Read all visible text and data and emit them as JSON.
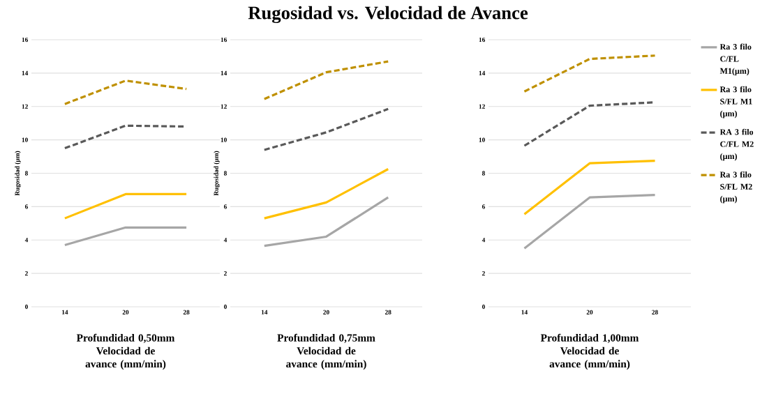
{
  "chart_data": [
    {
      "type": "line",
      "xlabel": "Profundidad 0,50mm Velocidad de avance (mm/min)",
      "ylabel": "Rugosidad (µm)",
      "categories": [
        "14",
        "20",
        "28"
      ],
      "ylim": [
        0,
        16
      ],
      "yticks": [
        0,
        2,
        4,
        6,
        8,
        10,
        12,
        14,
        16
      ],
      "grid": "y",
      "legend": false,
      "series": [
        {
          "color": "#a6a6a6",
          "line_style": "solid",
          "values": [
            3.7,
            4.75,
            4.75
          ]
        },
        {
          "color": "#ffc000",
          "line_style": "solid",
          "values": [
            5.3,
            6.75,
            6.75
          ]
        },
        {
          "color": "#595959",
          "line_style": "dashed",
          "values": [
            9.5,
            10.85,
            10.8
          ]
        },
        {
          "color": "#bf9000",
          "line_style": "dashed",
          "values": [
            12.15,
            13.55,
            13.05
          ]
        }
      ]
    },
    {
      "type": "line",
      "title": "Rugosidad vs. Velocidad de Avance",
      "xlabel": "Profundidad 0,75mm Velocidad de avance (mm/min)",
      "ylabel": "Rugosidad (µm)",
      "categories": [
        "14",
        "20",
        "28"
      ],
      "ylim": [
        0,
        16
      ],
      "yticks": [
        0,
        2,
        4,
        6,
        8,
        10,
        12,
        14,
        16
      ],
      "grid": "y",
      "legend": false,
      "series": [
        {
          "color": "#a6a6a6",
          "line_style": "solid",
          "values": [
            3.65,
            4.2,
            6.55
          ]
        },
        {
          "color": "#ffc000",
          "line_style": "solid",
          "values": [
            5.3,
            6.25,
            8.25
          ]
        },
        {
          "color": "#595959",
          "line_style": "dashed",
          "values": [
            9.4,
            10.45,
            11.85
          ]
        },
        {
          "color": "#bf9000",
          "line_style": "dashed",
          "values": [
            12.45,
            14.05,
            14.7
          ]
        }
      ]
    },
    {
      "type": "line",
      "xlabel": "Profundidad 1,00mm Velocidad de avance (mm/min)",
      "categories": [
        "14",
        "20",
        "28"
      ],
      "ylim": [
        0,
        16
      ],
      "yticks": [
        0,
        2,
        4,
        6,
        8,
        10,
        12,
        14,
        16
      ],
      "grid": "y",
      "legend": "right",
      "series": [
        {
          "name": "Ra 3 filo C/FL M1(µm)",
          "color": "#a6a6a6",
          "line_style": "solid",
          "values": [
            3.5,
            6.55,
            6.7
          ]
        },
        {
          "name": "Ra 3 filo S/FL M1 (µm)",
          "color": "#ffc000",
          "line_style": "solid",
          "values": [
            5.55,
            8.6,
            8.75
          ]
        },
        {
          "name": "RA 3 filo C/FL M2 (µm)",
          "color": "#595959",
          "line_style": "dashed",
          "values": [
            9.65,
            12.05,
            12.25
          ]
        },
        {
          "name": "Ra 3 filo S/FL M2 (µm)",
          "color": "#bf9000",
          "line_style": "dashed",
          "values": [
            12.9,
            14.85,
            15.05
          ]
        }
      ]
    }
  ]
}
